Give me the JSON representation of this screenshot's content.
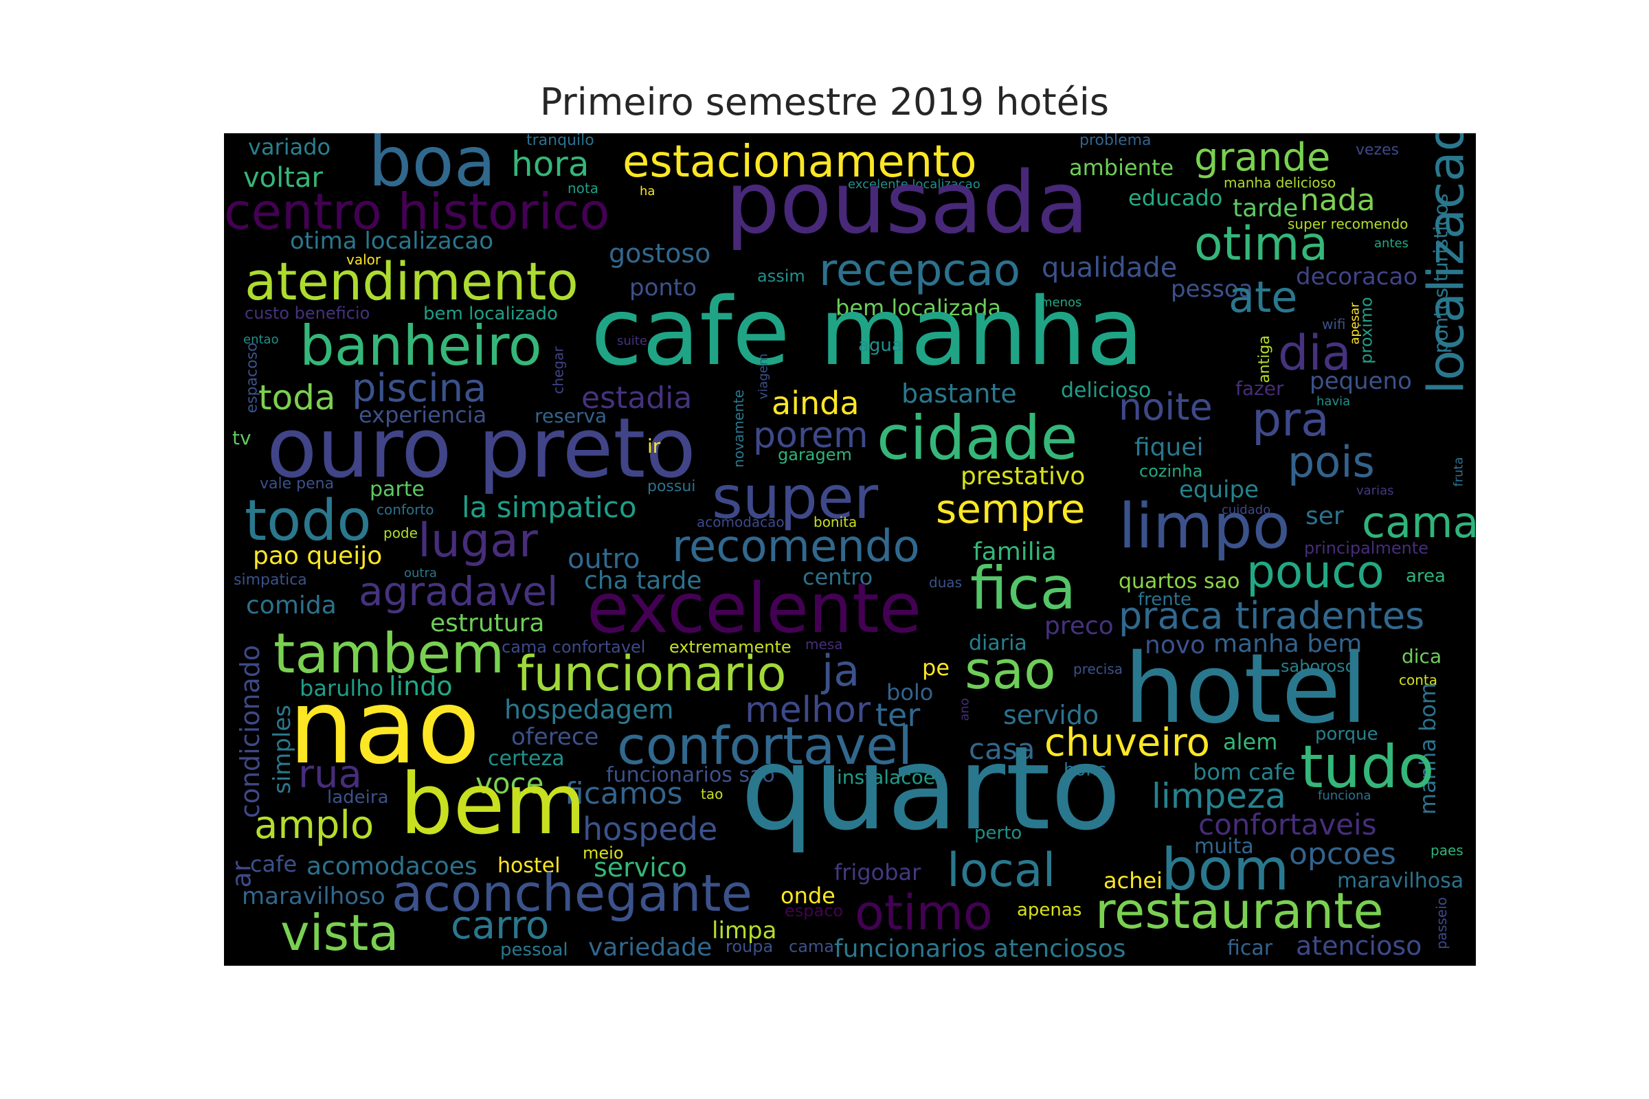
{
  "title": "Primeiro semestre 2019 hotéis",
  "words": [
    {
      "text": "tranquilo",
      "color": "#2c728e"
    },
    {
      "text": "problema",
      "color": "#33638d"
    },
    {
      "text": "variado",
      "color": "#26828e"
    },
    {
      "text": "boa",
      "color": "#31688e"
    },
    {
      "text": "hora",
      "color": "#35b779"
    },
    {
      "text": "estacionamento",
      "color": "#fde725"
    },
    {
      "text": "ambiente",
      "color": "#6ece58"
    },
    {
      "text": "grande",
      "color": "#7ad151"
    },
    {
      "text": "vezes",
      "color": "#3e4989"
    },
    {
      "text": "localizacao",
      "color": "#2a788e"
    },
    {
      "text": "voltar",
      "color": "#35b779"
    },
    {
      "text": "nota",
      "color": "#1f9e89"
    },
    {
      "text": "ha",
      "color": "#fde725"
    },
    {
      "text": "excelente localizacao",
      "color": "#21918c"
    },
    {
      "text": "manha delicioso",
      "color": "#addc30"
    },
    {
      "text": "pontos turisticos",
      "color": "#2a788e"
    },
    {
      "text": "centro historico",
      "color": "#440154"
    },
    {
      "text": "pousada",
      "color": "#482878"
    },
    {
      "text": "educado",
      "color": "#25ab82"
    },
    {
      "text": "tarde",
      "color": "#5ec962"
    },
    {
      "text": "nada",
      "color": "#7ad151"
    },
    {
      "text": "super recomendo",
      "color": "#b5de2b"
    },
    {
      "text": "otima localizacao",
      "color": "#2a788e"
    },
    {
      "text": "gostoso",
      "color": "#31688e"
    },
    {
      "text": "otima",
      "color": "#35b779"
    },
    {
      "text": "antes",
      "color": "#22a884"
    },
    {
      "text": "valor",
      "color": "#fde725"
    },
    {
      "text": "atendimento",
      "color": "#addc30"
    },
    {
      "text": "recepcao",
      "color": "#2c728e"
    },
    {
      "text": "qualidade",
      "color": "#3b528b"
    },
    {
      "text": "pessoa",
      "color": "#3b528b"
    },
    {
      "text": "decoracao",
      "color": "#414487"
    },
    {
      "text": "assim",
      "color": "#21918c"
    },
    {
      "text": "ponto",
      "color": "#3b528b"
    },
    {
      "text": "ate",
      "color": "#2a788e"
    },
    {
      "text": "custo beneficio",
      "color": "#46327e"
    },
    {
      "text": "bem localizado",
      "color": "#1f9e89"
    },
    {
      "text": "bem localizada",
      "color": "#6ece58"
    },
    {
      "text": "menos",
      "color": "#22a884"
    },
    {
      "text": "wifi",
      "color": "#3b528b"
    },
    {
      "text": "apesar",
      "color": "#fde725"
    },
    {
      "text": "proximo",
      "color": "#1f9e89"
    },
    {
      "text": "entao",
      "color": "#21918c"
    },
    {
      "text": "suite",
      "color": "#46327e"
    },
    {
      "text": "banheiro",
      "color": "#35b779"
    },
    {
      "text": "cafe manha",
      "color": "#20a486"
    },
    {
      "text": "agua",
      "color": "#21918c"
    },
    {
      "text": "antiga",
      "color": "#b5de2b"
    },
    {
      "text": "dia",
      "color": "#46327e"
    },
    {
      "text": "espacoso",
      "color": "#3b528b"
    },
    {
      "text": "chegar",
      "color": "#414487"
    },
    {
      "text": "viagem",
      "color": "#3b528b"
    },
    {
      "text": "pequeno",
      "color": "#3b528b"
    },
    {
      "text": "fazer",
      "color": "#472d7b"
    },
    {
      "text": "havia",
      "color": "#21918c"
    },
    {
      "text": "toda",
      "color": "#7ad151"
    },
    {
      "text": "piscina",
      "color": "#3b528b"
    },
    {
      "text": "estadia",
      "color": "#46327e"
    },
    {
      "text": "ainda",
      "color": "#fde725"
    },
    {
      "text": "bastante",
      "color": "#2a788e"
    },
    {
      "text": "delicioso",
      "color": "#1f9e89"
    },
    {
      "text": "noite",
      "color": "#3e4989"
    },
    {
      "text": "experiencia",
      "color": "#3b528b"
    },
    {
      "text": "reserva",
      "color": "#33638d"
    },
    {
      "text": "novamente",
      "color": "#2a788e"
    },
    {
      "text": "pra",
      "color": "#3e4989"
    },
    {
      "text": "tv",
      "color": "#5ec962"
    },
    {
      "text": "ouro preto",
      "color": "#414487"
    },
    {
      "text": "ir",
      "color": "#fde725"
    },
    {
      "text": "porem",
      "color": "#3e4989"
    },
    {
      "text": "garagem",
      "color": "#2fb47c"
    },
    {
      "text": "cidade",
      "color": "#35b779"
    },
    {
      "text": "fiquei",
      "color": "#2a788e"
    },
    {
      "text": "cozinha",
      "color": "#22a884"
    },
    {
      "text": "pois",
      "color": "#33638d"
    },
    {
      "text": "fruta",
      "color": "#2c728e"
    },
    {
      "text": "vale pena",
      "color": "#3b528b"
    },
    {
      "text": "parte",
      "color": "#5ec962"
    },
    {
      "text": "possui",
      "color": "#2c728e"
    },
    {
      "text": "prestativo",
      "color": "#d8e219"
    },
    {
      "text": "equipe",
      "color": "#26828e"
    },
    {
      "text": "varias",
      "color": "#443983"
    },
    {
      "text": "todo",
      "color": "#2a788e"
    },
    {
      "text": "conforto",
      "color": "#2c728e"
    },
    {
      "text": "la simpatico",
      "color": "#1f9e89"
    },
    {
      "text": "super",
      "color": "#3e4989"
    },
    {
      "text": "sempre",
      "color": "#fde725"
    },
    {
      "text": "limpo",
      "color": "#3b528b"
    },
    {
      "text": "cuidado",
      "color": "#3e4989"
    },
    {
      "text": "ser",
      "color": "#2c728e"
    },
    {
      "text": "cama",
      "color": "#2fb47c"
    },
    {
      "text": "pode",
      "color": "#b5de2b"
    },
    {
      "text": "acomodacao",
      "color": "#3e4989"
    },
    {
      "text": "bonita",
      "color": "#c8e020"
    },
    {
      "text": "lugar",
      "color": "#472d7b"
    },
    {
      "text": "recomendo",
      "color": "#31688e"
    },
    {
      "text": "familia",
      "color": "#35b779"
    },
    {
      "text": "principalmente",
      "color": "#472d7b"
    },
    {
      "text": "pao queijo",
      "color": "#fde725"
    },
    {
      "text": "outro",
      "color": "#31688e"
    },
    {
      "text": "simpatica",
      "color": "#3b528b"
    },
    {
      "text": "outra",
      "color": "#2a788e"
    },
    {
      "text": "agradavel",
      "color": "#46327e"
    },
    {
      "text": "cha tarde",
      "color": "#2c728e"
    },
    {
      "text": "centro",
      "color": "#2c728e"
    },
    {
      "text": "fica",
      "color": "#54c568"
    },
    {
      "text": "quartos sao",
      "color": "#8bd646"
    },
    {
      "text": "pouco",
      "color": "#22a884"
    },
    {
      "text": "duas",
      "color": "#3b528b"
    },
    {
      "text": "area",
      "color": "#2fb47c"
    },
    {
      "text": "comida",
      "color": "#2c728e"
    },
    {
      "text": "excelente",
      "color": "#440154"
    },
    {
      "text": "frente",
      "color": "#2c728e"
    },
    {
      "text": "praca tiradentes",
      "color": "#31688e"
    },
    {
      "text": "estrutura",
      "color": "#6ece58"
    },
    {
      "text": "preco",
      "color": "#46327e"
    },
    {
      "text": "tambem",
      "color": "#7ad151"
    },
    {
      "text": "cama confortavel",
      "color": "#3e4989"
    },
    {
      "text": "extremamente",
      "color": "#c8e020"
    },
    {
      "text": "mesa",
      "color": "#472d7b"
    },
    {
      "text": "diaria",
      "color": "#26828e"
    },
    {
      "text": "novo",
      "color": "#3b528b"
    },
    {
      "text": "manha bem",
      "color": "#33638d"
    },
    {
      "text": "dica",
      "color": "#6ece58"
    },
    {
      "text": "condicionado",
      "color": "#3e4989"
    },
    {
      "text": "funcionario",
      "color": "#a0da39"
    },
    {
      "text": "ja",
      "color": "#3b528b"
    },
    {
      "text": "pe",
      "color": "#fde725"
    },
    {
      "text": "sao",
      "color": "#6ece58"
    },
    {
      "text": "precisa",
      "color": "#3b528b"
    },
    {
      "text": "saboroso",
      "color": "#26828e"
    },
    {
      "text": "conta",
      "color": "#d8e219"
    },
    {
      "text": "manha bom",
      "color": "#2c728e"
    },
    {
      "text": "barulho",
      "color": "#1f9e89"
    },
    {
      "text": "lindo",
      "color": "#22a884"
    },
    {
      "text": "bolo",
      "color": "#33638d"
    },
    {
      "text": "hotel",
      "color": "#2a788e"
    },
    {
      "text": "nao",
      "color": "#fde725"
    },
    {
      "text": "hospedagem",
      "color": "#2a788e"
    },
    {
      "text": "melhor",
      "color": "#3e4989"
    },
    {
      "text": "ter",
      "color": "#31688e"
    },
    {
      "text": "servido",
      "color": "#2c728e"
    },
    {
      "text": "ano",
      "color": "#472d7b"
    },
    {
      "text": "simples",
      "color": "#2a788e"
    },
    {
      "text": "oferece",
      "color": "#3b528b"
    },
    {
      "text": "confortavel",
      "color": "#31688e"
    },
    {
      "text": "casa",
      "color": "#31688e"
    },
    {
      "text": "chuveiro",
      "color": "#fde725"
    },
    {
      "text": "alem",
      "color": "#35b779"
    },
    {
      "text": "porque",
      "color": "#26828e"
    },
    {
      "text": "certeza",
      "color": "#21918c"
    },
    {
      "text": "tudo",
      "color": "#35b779"
    },
    {
      "text": "rua",
      "color": "#472d7b"
    },
    {
      "text": "funcionarios sao",
      "color": "#3b528b"
    },
    {
      "text": "instalacoes",
      "color": "#1f9e89"
    },
    {
      "text": "bons",
      "color": "#2c728e"
    },
    {
      "text": "bom cafe",
      "color": "#26828e"
    },
    {
      "text": "voce",
      "color": "#7ad151"
    },
    {
      "text": "ficamos",
      "color": "#33638d"
    },
    {
      "text": "tao",
      "color": "#c8e020"
    },
    {
      "text": "ladeira",
      "color": "#3b528b"
    },
    {
      "text": "bem",
      "color": "#c8e020"
    },
    {
      "text": "quarto",
      "color": "#2a788e"
    },
    {
      "text": "limpeza",
      "color": "#26828e"
    },
    {
      "text": "funciona",
      "color": "#2c728e"
    },
    {
      "text": "amplo",
      "color": "#b5de2b"
    },
    {
      "text": "hospede",
      "color": "#3b528b"
    },
    {
      "text": "confortaveis",
      "color": "#472d7b"
    },
    {
      "text": "perto",
      "color": "#21918c"
    },
    {
      "text": "meio",
      "color": "#d8e219"
    },
    {
      "text": "muita",
      "color": "#31688e"
    },
    {
      "text": "opcoes",
      "color": "#33638d"
    },
    {
      "text": "paes",
      "color": "#2fb47c"
    },
    {
      "text": "ar",
      "color": "#3e4989"
    },
    {
      "text": "cafe",
      "color": "#3b528b"
    },
    {
      "text": "acomodacoes",
      "color": "#2c728e"
    },
    {
      "text": "hostel",
      "color": "#fde725"
    },
    {
      "text": "servico",
      "color": "#35b779"
    },
    {
      "text": "frigobar",
      "color": "#443983"
    },
    {
      "text": "local",
      "color": "#2a788e"
    },
    {
      "text": "bom",
      "color": "#2a788e"
    },
    {
      "text": "achei",
      "color": "#fde725"
    },
    {
      "text": "maravilhosa",
      "color": "#2c728e"
    },
    {
      "text": "maravilhoso",
      "color": "#31688e"
    },
    {
      "text": "aconchegante",
      "color": "#3b528b"
    },
    {
      "text": "onde",
      "color": "#fde725"
    },
    {
      "text": "espaco",
      "color": "#440154"
    },
    {
      "text": "otimo",
      "color": "#440154"
    },
    {
      "text": "apenas",
      "color": "#d8e219"
    },
    {
      "text": "restaurante",
      "color": "#7ad151"
    },
    {
      "text": "passeio",
      "color": "#3e4989"
    },
    {
      "text": "vista",
      "color": "#7ad151"
    },
    {
      "text": "carro",
      "color": "#2a788e"
    },
    {
      "text": "limpa",
      "color": "#b5de2b"
    },
    {
      "text": "pessoal",
      "color": "#2a788e"
    },
    {
      "text": "variedade",
      "color": "#31688e"
    },
    {
      "text": "roupa",
      "color": "#3b528b"
    },
    {
      "text": "cama",
      "color": "#3b528b"
    },
    {
      "text": "funcionarios atenciosos",
      "color": "#2a788e"
    },
    {
      "text": "ficar",
      "color": "#33638d"
    },
    {
      "text": "atencioso",
      "color": "#3e4989"
    }
  ]
}
